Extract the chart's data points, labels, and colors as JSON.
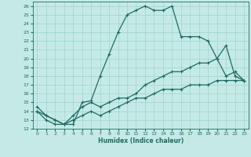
{
  "xlabel": "Humidex (Indice chaleur)",
  "xlim": [
    -0.5,
    23.5
  ],
  "ylim": [
    12,
    26.5
  ],
  "yticks": [
    12,
    13,
    14,
    15,
    16,
    17,
    18,
    19,
    20,
    21,
    22,
    23,
    24,
    25,
    26
  ],
  "xticks": [
    0,
    1,
    2,
    3,
    4,
    5,
    6,
    7,
    8,
    9,
    10,
    11,
    12,
    13,
    14,
    15,
    16,
    17,
    18,
    19,
    20,
    21,
    22,
    23
  ],
  "background_color": "#c5eae6",
  "grid_color": "#9dd4cf",
  "line_color": "#1f6b63",
  "line1_y": [
    14.5,
    13.5,
    13.0,
    12.5,
    12.5,
    15.0,
    15.2,
    18.0,
    20.5,
    23.0,
    25.0,
    25.5,
    26.0,
    25.5,
    25.5,
    26.0,
    22.5,
    22.5,
    22.5,
    22.0,
    20.0,
    21.5,
    18.0,
    17.5
  ],
  "line2_y": [
    14.0,
    13.5,
    13.0,
    12.5,
    13.5,
    14.5,
    15.0,
    14.5,
    15.0,
    15.5,
    15.5,
    16.0,
    17.0,
    17.5,
    18.0,
    18.5,
    18.5,
    19.0,
    19.5,
    19.5,
    20.0,
    18.0,
    18.5,
    17.5
  ],
  "line3_y": [
    14.0,
    13.0,
    12.5,
    12.5,
    13.0,
    13.5,
    14.0,
    13.5,
    14.0,
    14.5,
    15.0,
    15.5,
    15.5,
    16.0,
    16.5,
    16.5,
    16.5,
    17.0,
    17.0,
    17.0,
    17.5,
    17.5,
    17.5,
    17.5
  ]
}
